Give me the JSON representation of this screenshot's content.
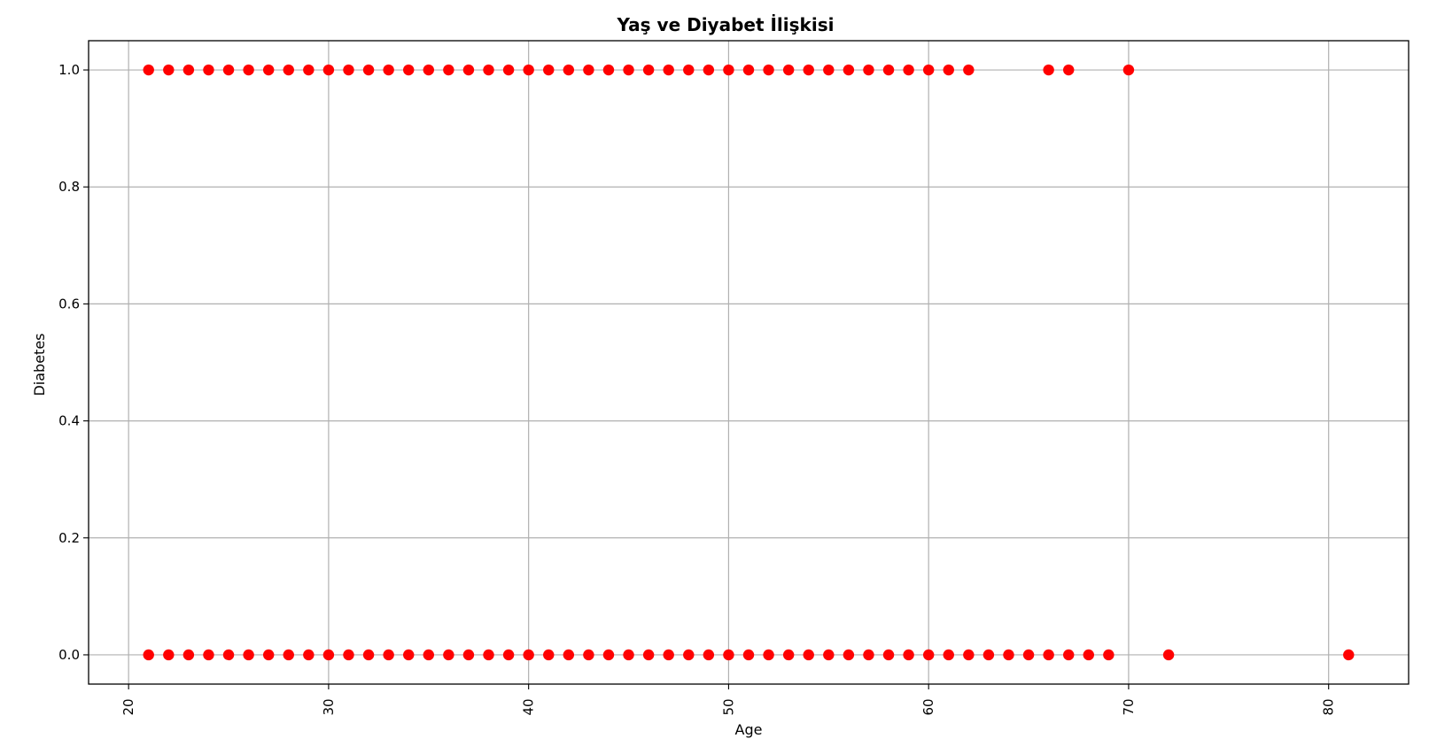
{
  "chart_data": {
    "type": "scatter",
    "title": "Yaş ve Diyabet İlişkisi",
    "xlabel": "Age",
    "ylabel": "Diabetes",
    "xlim": [
      18,
      84
    ],
    "ylim": [
      -0.05,
      1.05
    ],
    "xticks": [
      20,
      30,
      40,
      50,
      60,
      70,
      80
    ],
    "yticks": [
      "0.0",
      "0.2",
      "0.4",
      "0.6",
      "0.8",
      "1.0"
    ],
    "grid": true,
    "marker_color": "#ff0000",
    "series": [
      {
        "x": [
          21,
          22,
          23,
          24,
          25,
          26,
          27,
          28,
          29,
          30,
          31,
          32,
          33,
          34,
          35,
          36,
          37,
          38,
          39,
          40,
          41,
          42,
          43,
          44,
          45,
          46,
          47,
          48,
          49,
          50,
          51,
          52,
          53,
          54,
          55,
          56,
          57,
          58,
          59,
          60,
          61,
          62,
          66,
          67,
          70
        ],
        "y": [
          1,
          1,
          1,
          1,
          1,
          1,
          1,
          1,
          1,
          1,
          1,
          1,
          1,
          1,
          1,
          1,
          1,
          1,
          1,
          1,
          1,
          1,
          1,
          1,
          1,
          1,
          1,
          1,
          1,
          1,
          1,
          1,
          1,
          1,
          1,
          1,
          1,
          1,
          1,
          1,
          1,
          1,
          1,
          1,
          1
        ]
      },
      {
        "x": [
          21,
          22,
          23,
          24,
          25,
          26,
          27,
          28,
          29,
          30,
          31,
          32,
          33,
          34,
          35,
          36,
          37,
          38,
          39,
          40,
          41,
          42,
          43,
          44,
          45,
          46,
          47,
          48,
          49,
          50,
          51,
          52,
          53,
          54,
          55,
          56,
          57,
          58,
          59,
          60,
          61,
          62,
          63,
          64,
          65,
          66,
          67,
          68,
          69,
          72,
          81
        ],
        "y": [
          0,
          0,
          0,
          0,
          0,
          0,
          0,
          0,
          0,
          0,
          0,
          0,
          0,
          0,
          0,
          0,
          0,
          0,
          0,
          0,
          0,
          0,
          0,
          0,
          0,
          0,
          0,
          0,
          0,
          0,
          0,
          0,
          0,
          0,
          0,
          0,
          0,
          0,
          0,
          0,
          0,
          0,
          0,
          0,
          0,
          0,
          0,
          0,
          0,
          0,
          0
        ]
      }
    ]
  }
}
